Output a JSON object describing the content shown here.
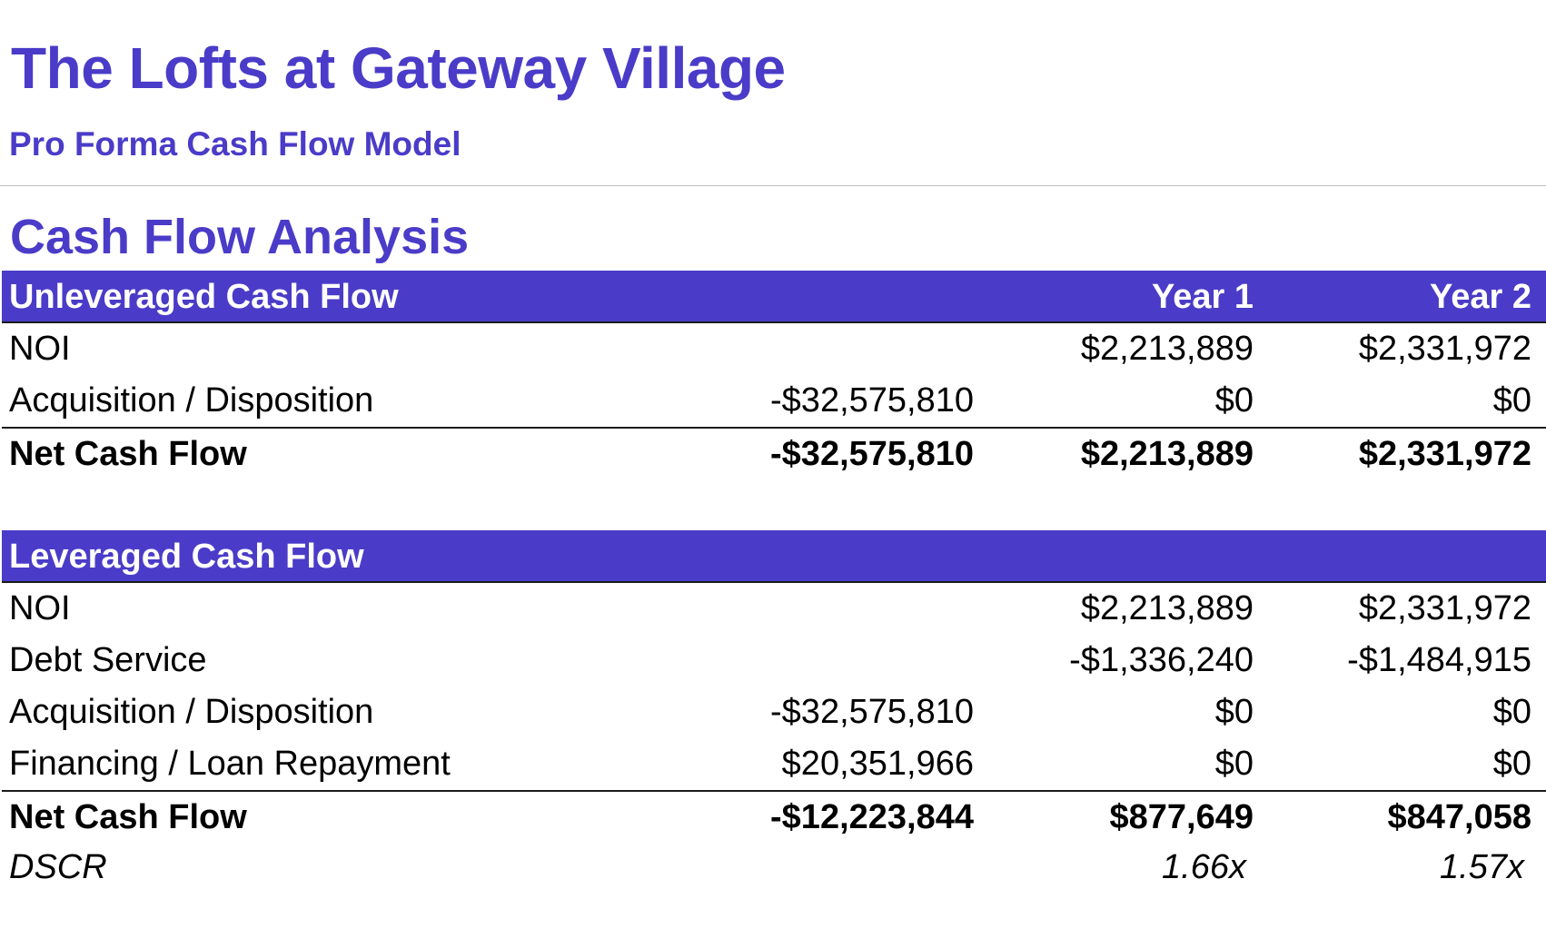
{
  "header": {
    "title": "The Lofts at Gateway Village",
    "subtitle": "Pro Forma Cash Flow Model"
  },
  "section": {
    "title": "Cash Flow Analysis"
  },
  "unleveraged": {
    "heading": "Unleveraged Cash Flow",
    "col0": "",
    "col1": "Year 1",
    "col2": "Year 2",
    "rows": [
      {
        "label": "NOI",
        "c0": "",
        "c1": "$2,213,889",
        "c2": "$2,331,972"
      },
      {
        "label": "Acquisition / Disposition",
        "c0": "-$32,575,810",
        "c1": "$0",
        "c2": "$0"
      }
    ],
    "total": {
      "label": "Net Cash Flow",
      "c0": "-$32,575,810",
      "c1": "$2,213,889",
      "c2": "$2,331,972"
    }
  },
  "leveraged": {
    "heading": "Leveraged Cash Flow",
    "col0": "",
    "col1": "",
    "col2": "",
    "rows": [
      {
        "label": "NOI",
        "c0": "",
        "c1": "$2,213,889",
        "c2": "$2,331,972"
      },
      {
        "label": "Debt Service",
        "c0": "",
        "c1": "-$1,336,240",
        "c2": "-$1,484,915"
      },
      {
        "label": "Acquisition / Disposition",
        "c0": "-$32,575,810",
        "c1": "$0",
        "c2": "$0"
      },
      {
        "label": "Financing / Loan Repayment",
        "c0": "$20,351,966",
        "c1": "$0",
        "c2": "$0"
      }
    ],
    "total": {
      "label": "Net Cash Flow",
      "c0": "-$12,223,844",
      "c1": "$877,649",
      "c2": "$847,058"
    },
    "dscr": {
      "label": "DSCR",
      "c0": "",
      "c1": "1.66x",
      "c2": "1.57x"
    }
  },
  "colors": {
    "accent": "#4a3cc8",
    "header_text": "#ffffff",
    "rule": "#1a1a1a"
  }
}
